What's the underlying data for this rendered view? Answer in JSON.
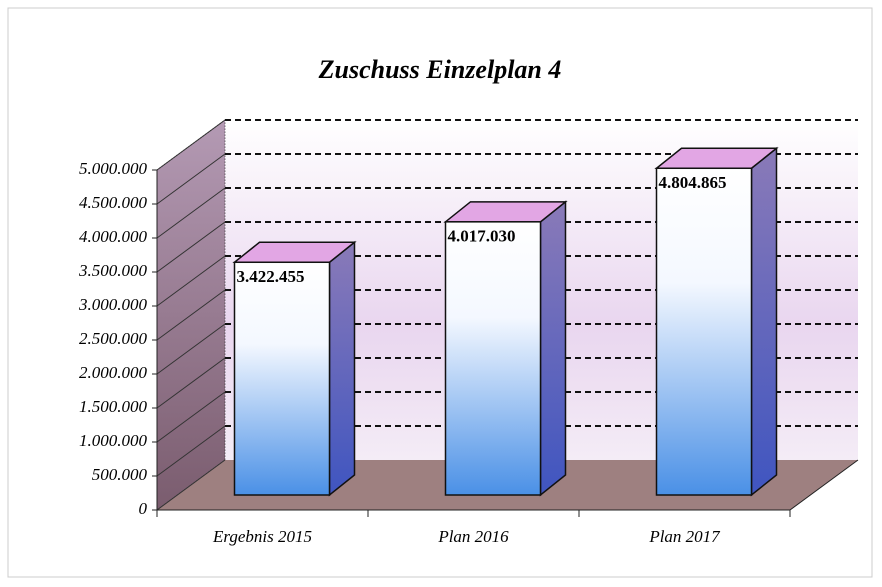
{
  "chart_data": {
    "type": "bar3d",
    "title": "Zuschuss Einzelplan 4",
    "categories": [
      "Ergebnis 2015",
      "Plan 2016",
      "Plan 2017"
    ],
    "values": [
      3422455,
      4017030,
      4804865
    ],
    "value_labels": [
      "3.422.455",
      "4.017.030",
      "4.804.865"
    ],
    "ylim": [
      0,
      5000000
    ],
    "yticks": [
      0,
      {
        "value": 500000,
        "label": "500.000"
      },
      {
        "value": 1000000,
        "label": "1.000.000"
      },
      {
        "value": 1500000,
        "label": "1.500.000"
      },
      {
        "value": 2000000,
        "label": "2.000.000"
      },
      {
        "value": 2500000,
        "label": "2.500.000"
      },
      {
        "value": 3000000,
        "label": "3.000.000"
      },
      {
        "value": 3500000,
        "label": "3.500.000"
      },
      {
        "value": 4000000,
        "label": "4.000.000"
      },
      {
        "value": 4500000,
        "label": "4.500.000"
      },
      {
        "value": 5000000,
        "label": "5.000.000"
      }
    ],
    "grid": true
  }
}
